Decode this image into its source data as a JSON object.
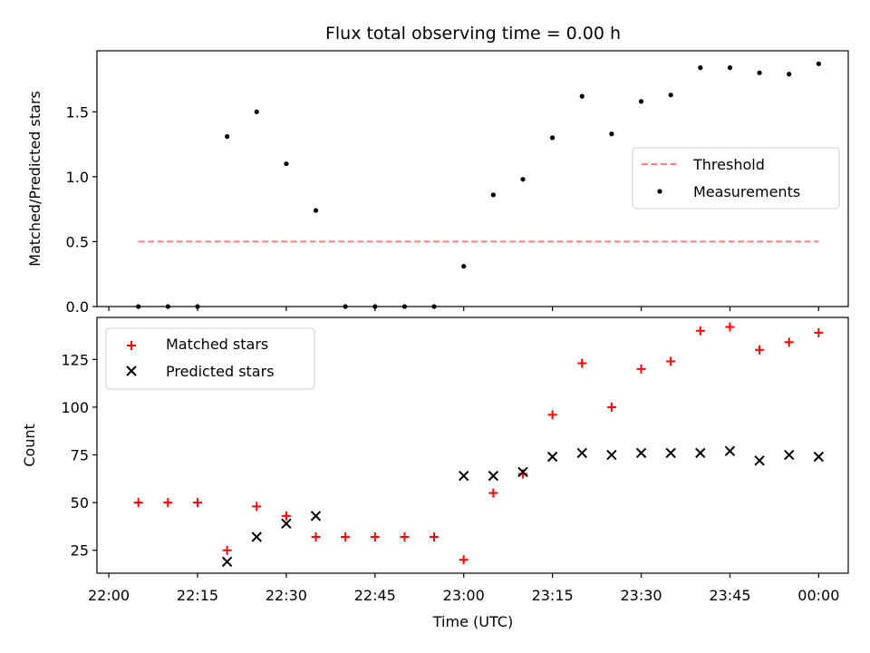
{
  "chart_data": [
    {
      "type": "scatter",
      "title": "Flux total observing time = 0.00 h",
      "ylabel": "Matched/Predicted stars",
      "xlabel": "",
      "ylim": [
        0,
        1.97
      ],
      "yticks": [
        0.0,
        0.5,
        1.0,
        1.5
      ],
      "ytick_labels": [
        "0.0",
        "0.5",
        "1.0",
        "1.5"
      ],
      "legend_position": "center-right",
      "series": [
        {
          "name": "Threshold",
          "style": "dashed-line",
          "color": "#ff7f7f",
          "x": [
            "22:05",
            "00:00"
          ],
          "y": [
            0.5,
            0.5
          ]
        },
        {
          "name": "Measurements",
          "style": "dot",
          "color": "#000000",
          "x": [
            "22:05",
            "22:10",
            "22:15",
            "22:20",
            "22:25",
            "22:30",
            "22:35",
            "22:40",
            "22:45",
            "22:50",
            "22:55",
            "23:00",
            "23:05",
            "23:10",
            "23:15",
            "23:20",
            "23:25",
            "23:30",
            "23:35",
            "23:40",
            "23:45",
            "23:50",
            "23:55",
            "00:00"
          ],
          "y": [
            0.0,
            0.0,
            0.0,
            1.31,
            1.5,
            1.1,
            0.74,
            0.0,
            0.0,
            0.0,
            0.0,
            0.31,
            0.86,
            0.98,
            1.3,
            1.62,
            1.33,
            1.58,
            1.63,
            1.84,
            1.84,
            1.8,
            1.79,
            1.87
          ]
        }
      ]
    },
    {
      "type": "scatter",
      "ylabel": "Count",
      "xlabel": "Time (UTC)",
      "ylim": [
        13,
        147
      ],
      "yticks": [
        25,
        50,
        75,
        100,
        125
      ],
      "ytick_labels": [
        "25",
        "50",
        "75",
        "100",
        "125"
      ],
      "x_tick_labels": [
        "22:00",
        "22:15",
        "22:30",
        "22:45",
        "23:00",
        "23:15",
        "23:30",
        "23:45",
        "00:00"
      ],
      "legend_position": "top-left",
      "series": [
        {
          "name": "Matched stars",
          "marker": "plus",
          "color": "#ff0000",
          "x": [
            "22:05",
            "22:10",
            "22:15",
            "22:20",
            "22:25",
            "22:30",
            "22:35",
            "22:40",
            "22:45",
            "22:50",
            "22:55",
            "23:00",
            "23:05",
            "23:10",
            "23:15",
            "23:20",
            "23:25",
            "23:30",
            "23:35",
            "23:40",
            "23:45",
            "23:50",
            "23:55",
            "00:00"
          ],
          "y": [
            50,
            50,
            50,
            25,
            48,
            43,
            32,
            32,
            32,
            32,
            32,
            20,
            55,
            65,
            96,
            123,
            100,
            120,
            124,
            140,
            142,
            130,
            134,
            139
          ]
        },
        {
          "name": "Predicted stars",
          "marker": "x",
          "color": "#000000",
          "x": [
            "22:20",
            "22:25",
            "22:30",
            "22:35",
            "23:00",
            "23:05",
            "23:10",
            "23:15",
            "23:20",
            "23:25",
            "23:30",
            "23:35",
            "23:40",
            "23:45",
            "23:50",
            "23:55",
            "00:00"
          ],
          "y": [
            19,
            32,
            39,
            43,
            64,
            64,
            66,
            74,
            76,
            75,
            76,
            76,
            76,
            77,
            72,
            75,
            74
          ]
        }
      ]
    }
  ]
}
